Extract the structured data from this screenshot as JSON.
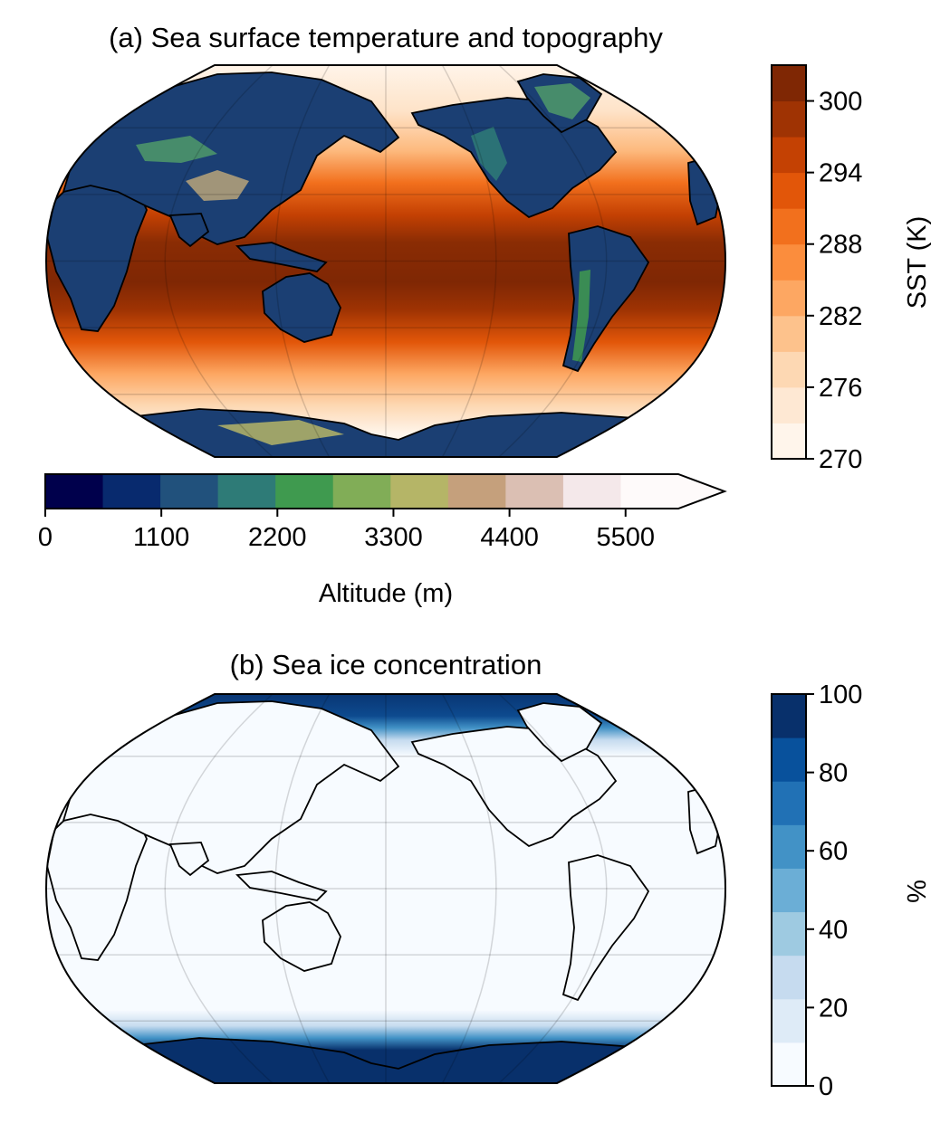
{
  "panel_a": {
    "title": "(a) Sea surface temperature and topography",
    "sst_colorbar": {
      "label": "SST (K)",
      "ticks": [
        "270",
        "276",
        "282",
        "288",
        "294",
        "300"
      ],
      "range": [
        270,
        303
      ],
      "colors": [
        "#fff5eb",
        "#fee8d3",
        "#fdd8b3",
        "#fdc28c",
        "#fda762",
        "#fb8d3d",
        "#f2701d",
        "#e25609",
        "#c44103",
        "#9f3303",
        "#7f2704"
      ]
    },
    "topo_colorbar": {
      "label": "Altitude (m)",
      "ticks": [
        "0",
        "1100",
        "2200",
        "3300",
        "4400",
        "5500"
      ],
      "range": [
        0,
        6000
      ],
      "extend": "max",
      "colors": [
        "#00004c",
        "#082a6e",
        "#21517c",
        "#2e7b77",
        "#3f9a4f",
        "#81ad57",
        "#b5b567",
        "#c5a07c",
        "#dbbfb3",
        "#f4e8ea",
        "#fefafa"
      ]
    }
  },
  "panel_b": {
    "title": "(b) Sea ice concentration",
    "colorbar": {
      "label": "%",
      "ticks": [
        "0",
        "20",
        "40",
        "60",
        "80",
        "100"
      ],
      "range": [
        0,
        100
      ],
      "colors": [
        "#f7fbff",
        "#deebf7",
        "#c6dbef",
        "#9ecae1",
        "#6baed6",
        "#4292c6",
        "#2171b5",
        "#08519c",
        "#08306b"
      ]
    }
  }
}
